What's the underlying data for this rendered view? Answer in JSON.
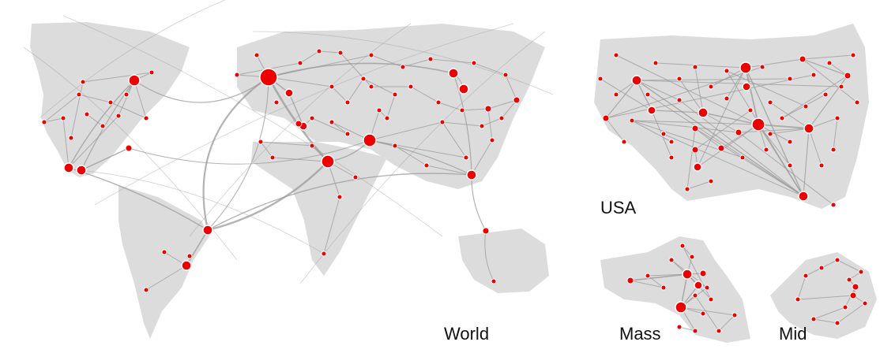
{
  "colors": {
    "land": "#dcdcdc",
    "edge": "#9a9a9a",
    "node": "#ee0000",
    "node_outline": "#ffffff",
    "label": "#111111"
  },
  "panels": [
    {
      "key": "world",
      "label": "World"
    },
    {
      "key": "usa",
      "label": "USA"
    },
    {
      "key": "mass",
      "label": "Mass"
    },
    {
      "key": "mid",
      "label": "Mid"
    }
  ]
}
